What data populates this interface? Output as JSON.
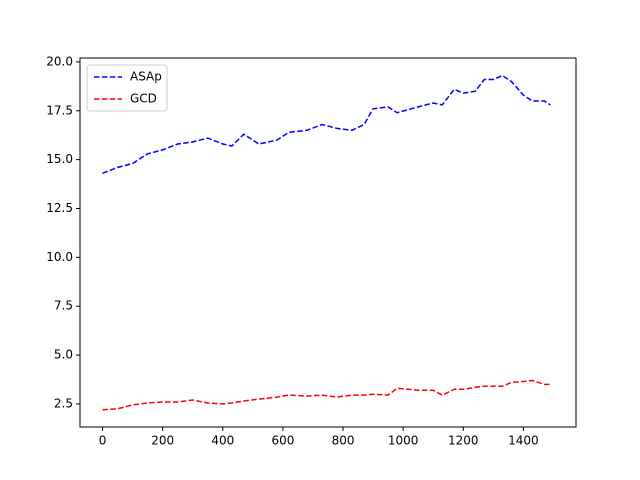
{
  "chart_data": {
    "type": "line",
    "x": [
      0,
      50,
      100,
      150,
      200,
      250,
      300,
      350,
      400,
      430,
      470,
      520,
      580,
      620,
      680,
      730,
      780,
      830,
      870,
      900,
      950,
      980,
      1050,
      1100,
      1130,
      1170,
      1200,
      1240,
      1270,
      1300,
      1330,
      1360,
      1400,
      1430,
      1470,
      1490
    ],
    "series": [
      {
        "name": "ASAp",
        "color": "#0000ff",
        "values": [
          14.3,
          14.6,
          14.8,
          15.3,
          15.5,
          15.8,
          15.9,
          16.1,
          15.8,
          15.7,
          16.3,
          15.8,
          16.0,
          16.4,
          16.5,
          16.8,
          16.6,
          16.5,
          16.8,
          17.6,
          17.7,
          17.4,
          17.7,
          17.9,
          17.8,
          18.6,
          18.4,
          18.5,
          19.1,
          19.1,
          19.3,
          19.0,
          18.3,
          18.0,
          18.0,
          17.8
        ]
      },
      {
        "name": "GCD",
        "color": "#ff0000",
        "values": [
          2.2,
          2.25,
          2.45,
          2.55,
          2.6,
          2.6,
          2.7,
          2.55,
          2.5,
          2.55,
          2.65,
          2.75,
          2.85,
          2.95,
          2.9,
          2.95,
          2.85,
          2.95,
          2.95,
          3.0,
          2.95,
          3.3,
          3.2,
          3.2,
          2.95,
          3.25,
          3.25,
          3.35,
          3.4,
          3.4,
          3.4,
          3.6,
          3.65,
          3.7,
          3.5,
          3.5
        ]
      }
    ],
    "xlim": [
      -75,
      1575
    ],
    "xticks": [
      0,
      200,
      400,
      600,
      800,
      1000,
      1200,
      1400
    ],
    "ylim": [
      1.32,
      20.2
    ],
    "yticks": [
      {
        "value": 2.5,
        "label": "2.5"
      },
      {
        "value": 5,
        "label": "5.0"
      },
      {
        "value": 7.5,
        "label": "7.5"
      },
      {
        "value": 10,
        "label": "10.0"
      },
      {
        "value": 12.5,
        "label": "12.5"
      },
      {
        "value": 15,
        "label": "15.0"
      },
      {
        "value": 17.5,
        "label": "17.5"
      },
      {
        "value": 20,
        "label": "20.0"
      }
    ],
    "line_style": "dashed",
    "legend": "upper left",
    "grid": false
  }
}
